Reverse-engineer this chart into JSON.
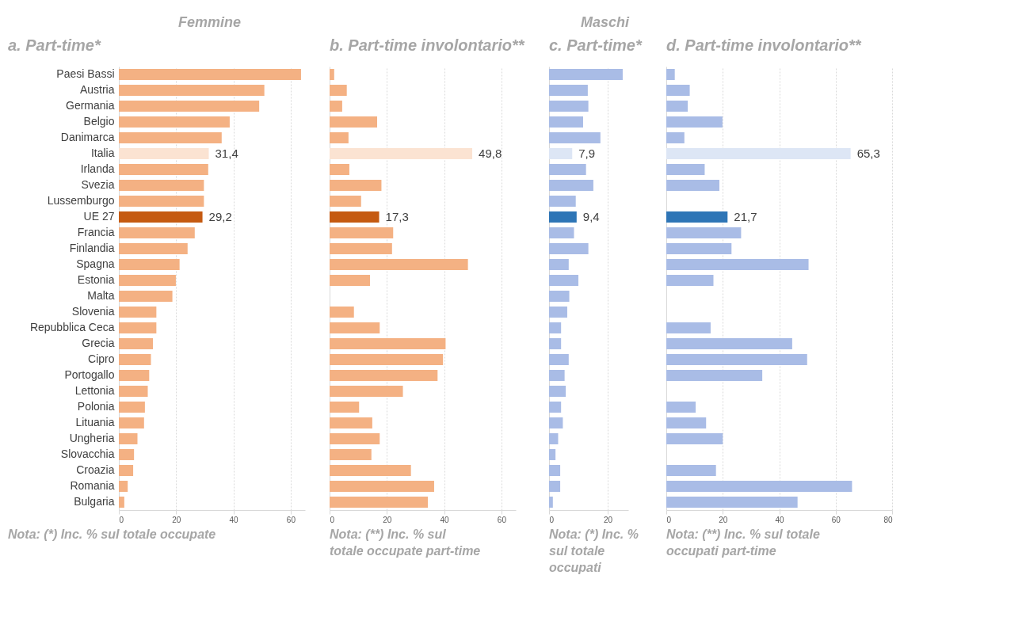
{
  "chart_data": [
    {
      "type": "bar",
      "orientation": "horizontal",
      "subtitle": "Femmine",
      "title": "a. Part-time*",
      "tick_labels": "all",
      "grid": "x",
      "categories": [
        "Paesi Bassi",
        "Austria",
        "Germania",
        "Belgio",
        "Danimarca",
        "Italia",
        "Irlanda",
        "Svezia",
        "Lussemburgo",
        "UE 27",
        "Francia",
        "Finlandia",
        "Spagna",
        "Estonia",
        "Malta",
        "Slovenia",
        "Repubblica Ceca",
        "Grecia",
        "Cipro",
        "Portogallo",
        "Lettonia",
        "Polonia",
        "Lituania",
        "Ungheria",
        "Slovacchia",
        "Croazia",
        "Romania",
        "Bulgaria"
      ],
      "values": [
        63.6,
        50.8,
        49.0,
        38.7,
        35.9,
        31.4,
        31.2,
        29.7,
        29.7,
        29.2,
        26.5,
        24.0,
        21.2,
        19.9,
        18.7,
        13.1,
        13.1,
        11.9,
        11.2,
        10.6,
        10.1,
        9.1,
        8.8,
        6.5,
        5.3,
        5.0,
        3.1,
        1.9
      ],
      "colors": [
        "#f4b183",
        "#f4b183",
        "#f4b183",
        "#f4b183",
        "#f4b183",
        "#fbe3d2",
        "#f4b183",
        "#f4b183",
        "#f4b183",
        "#c55a11",
        "#f4b183",
        "#f4b183",
        "#f4b183",
        "#f4b183",
        "#f4b183",
        "#f4b183",
        "#f4b183",
        "#f4b183",
        "#f4b183",
        "#f4b183",
        "#f4b183",
        "#f4b183",
        "#f4b183",
        "#f4b183",
        "#f4b183",
        "#f4b183",
        "#f4b183",
        "#f4b183"
      ],
      "value_labels": [
        null,
        null,
        null,
        null,
        null,
        "31,4",
        null,
        null,
        null,
        "29,2",
        null,
        null,
        null,
        null,
        null,
        null,
        null,
        null,
        null,
        null,
        null,
        null,
        null,
        null,
        null,
        null,
        null,
        null
      ],
      "xlim": [
        0,
        65
      ],
      "xticks": [
        0,
        20,
        40,
        60
      ],
      "annotations": [
        "Nota: (*) Inc. % sul totale occupate"
      ]
    },
    {
      "type": "bar",
      "orientation": "horizontal",
      "title": "b. Part-time involontario**",
      "tick_labels": "x",
      "grid": "x",
      "categories": [
        null,
        null,
        null,
        null,
        null,
        null,
        null,
        null,
        null,
        null,
        null,
        null,
        null,
        null,
        null,
        null,
        null,
        null,
        null,
        null,
        null,
        null,
        null,
        null,
        null,
        null,
        null,
        null
      ],
      "values": [
        1.6,
        6.0,
        4.4,
        16.6,
        6.6,
        49.8,
        6.9,
        18.1,
        11.0,
        17.3,
        22.2,
        21.8,
        48.3,
        14.1,
        null,
        8.5,
        17.5,
        40.5,
        39.6,
        37.7,
        25.6,
        10.3,
        14.9,
        17.5,
        14.6,
        28.4,
        36.5,
        34.3
      ],
      "colors": [
        "#f4b183",
        "#f4b183",
        "#f4b183",
        "#f4b183",
        "#f4b183",
        "#fbe3d2",
        "#f4b183",
        "#f4b183",
        "#f4b183",
        "#c55a11",
        "#f4b183",
        "#f4b183",
        "#f4b183",
        "#f4b183",
        "#f4b183",
        "#f4b183",
        "#f4b183",
        "#f4b183",
        "#f4b183",
        "#f4b183",
        "#f4b183",
        "#f4b183",
        "#f4b183",
        "#f4b183",
        "#f4b183",
        "#f4b183",
        "#f4b183",
        "#f4b183"
      ],
      "value_labels": [
        null,
        null,
        null,
        null,
        null,
        "49,8",
        null,
        null,
        null,
        "17,3",
        null,
        null,
        null,
        null,
        null,
        null,
        null,
        null,
        null,
        null,
        null,
        null,
        null,
        null,
        null,
        null,
        null,
        null
      ],
      "xlim": [
        0,
        65
      ],
      "xticks": [
        0,
        20,
        40,
        60
      ],
      "annotations": [
        "Nota: (**) Inc. % sul totale occupate part-time"
      ]
    },
    {
      "type": "bar",
      "orientation": "horizontal",
      "subtitle": "Maschi",
      "title": "c. Part-time*",
      "tick_labels": "x",
      "grid": "x",
      "categories": [
        null,
        null,
        null,
        null,
        null,
        null,
        null,
        null,
        null,
        null,
        null,
        null,
        null,
        null,
        null,
        null,
        null,
        null,
        null,
        null,
        null,
        null,
        null,
        null,
        null,
        null,
        null,
        null
      ],
      "values": [
        25.1,
        13.2,
        13.4,
        11.6,
        17.5,
        7.9,
        12.6,
        15.1,
        9.1,
        9.4,
        8.5,
        13.4,
        6.7,
        10.0,
        6.9,
        6.2,
        4.1,
        4.1,
        6.7,
        5.3,
        5.7,
        4.1,
        4.7,
        3.1,
        2.2,
        3.8,
        3.8,
        1.3
      ],
      "colors": [
        "#a9bce6",
        "#a9bce6",
        "#a9bce6",
        "#a9bce6",
        "#a9bce6",
        "#dde6f5",
        "#a9bce6",
        "#a9bce6",
        "#a9bce6",
        "#2e75b6",
        "#a9bce6",
        "#a9bce6",
        "#a9bce6",
        "#a9bce6",
        "#a9bce6",
        "#a9bce6",
        "#a9bce6",
        "#a9bce6",
        "#a9bce6",
        "#a9bce6",
        "#a9bce6",
        "#a9bce6",
        "#a9bce6",
        "#a9bce6",
        "#a9bce6",
        "#a9bce6",
        "#a9bce6",
        "#a9bce6"
      ],
      "value_labels": [
        null,
        null,
        null,
        null,
        null,
        "7,9",
        null,
        null,
        null,
        "9,4",
        null,
        null,
        null,
        null,
        null,
        null,
        null,
        null,
        null,
        null,
        null,
        null,
        null,
        null,
        null,
        null,
        null,
        null
      ],
      "xlim": [
        0,
        27
      ],
      "xticks": [
        0,
        20
      ],
      "annotations": [
        "Nota: (*) Inc. % sul totale occupati"
      ]
    },
    {
      "type": "bar",
      "orientation": "horizontal",
      "title": "d. Part-time involontario**",
      "tick_labels": "x",
      "grid": "x",
      "categories": [
        null,
        null,
        null,
        null,
        null,
        null,
        null,
        null,
        null,
        null,
        null,
        null,
        null,
        null,
        null,
        null,
        null,
        null,
        null,
        null,
        null,
        null,
        null,
        null,
        null,
        null,
        null,
        null
      ],
      "values": [
        3.0,
        8.3,
        7.6,
        19.9,
        6.4,
        65.3,
        13.6,
        18.8,
        null,
        21.7,
        26.5,
        23.1,
        50.4,
        16.7,
        null,
        null,
        15.7,
        44.6,
        49.9,
        34.0,
        null,
        10.4,
        14.1,
        20.0,
        null,
        17.6,
        65.8,
        46.5
      ],
      "colors": [
        "#a9bce6",
        "#a9bce6",
        "#a9bce6",
        "#a9bce6",
        "#a9bce6",
        "#dde6f5",
        "#a9bce6",
        "#a9bce6",
        "#a9bce6",
        "#2e75b6",
        "#a9bce6",
        "#a9bce6",
        "#a9bce6",
        "#a9bce6",
        "#a9bce6",
        "#a9bce6",
        "#a9bce6",
        "#a9bce6",
        "#a9bce6",
        "#a9bce6",
        "#a9bce6",
        "#a9bce6",
        "#a9bce6",
        "#a9bce6",
        "#a9bce6",
        "#a9bce6",
        "#a9bce6",
        "#a9bce6"
      ],
      "value_labels": [
        null,
        null,
        null,
        null,
        null,
        "65,3",
        null,
        null,
        null,
        "21,7",
        null,
        null,
        null,
        null,
        null,
        null,
        null,
        null,
        null,
        null,
        null,
        null,
        null,
        null,
        null,
        null,
        null,
        null
      ],
      "xlim": [
        0,
        80
      ],
      "xticks": [
        0,
        20,
        40,
        60,
        80
      ],
      "annotations": [
        "Nota: (**) Inc. % sul totale occupati part-time"
      ]
    }
  ]
}
